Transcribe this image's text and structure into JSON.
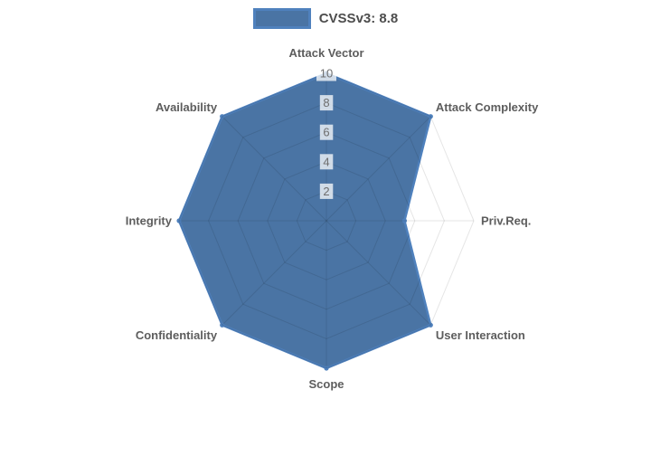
{
  "legend": {
    "items": [
      {
        "label": "CVSSv3: 8.8",
        "swatch_fill": "#4a74a4",
        "swatch_border": "#4f81bd"
      }
    ]
  },
  "chart_data": {
    "type": "radar",
    "title": "",
    "axes": [
      "Attack Vector",
      "Attack Complexity",
      "Priv.Req.",
      "User Interaction",
      "Scope",
      "Confidentiality",
      "Integrity",
      "Availability"
    ],
    "series": [
      {
        "name": "CVSSv3: 8.8",
        "values": [
          10,
          10,
          5.3,
          10,
          10,
          10,
          10,
          10
        ]
      }
    ],
    "scale": {
      "min": 0,
      "max": 10,
      "ticks": [
        2,
        4,
        6,
        8,
        10
      ]
    },
    "grid": true,
    "legend_position": "top",
    "colors": {
      "fill": "#4a74a4",
      "stroke": "#4f81bd",
      "grid": "rgba(0,0,0,0.1)",
      "tick_text": "#6e6e6e",
      "tick_backdrop": "rgba(255,255,255,0.75)",
      "axis_label": "#5d5d5d",
      "legend_text": "#4d4d4d"
    }
  }
}
